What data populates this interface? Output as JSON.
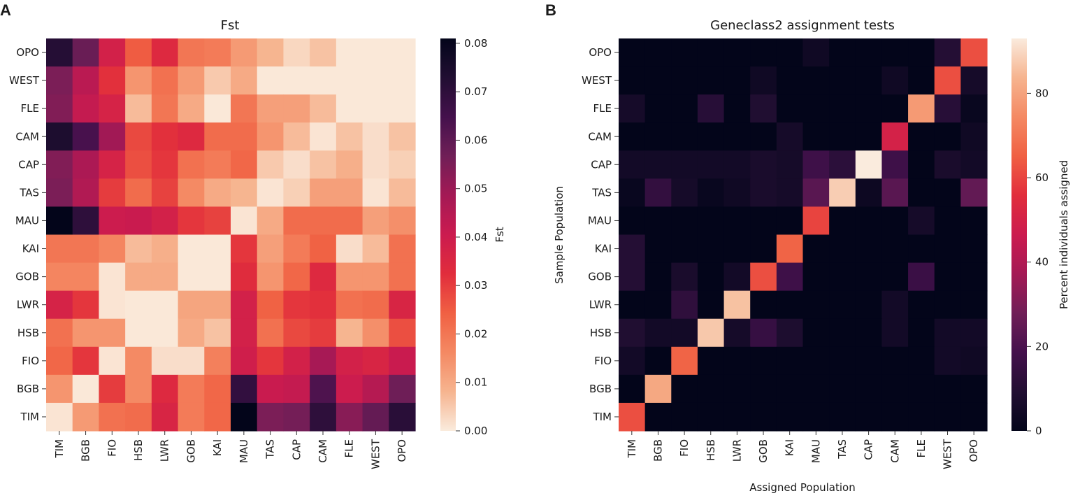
{
  "figure": {
    "panel_labels": [
      "A",
      "B"
    ]
  },
  "chart_data": [
    {
      "type": "heatmap",
      "panel": "A",
      "title": "Fst",
      "xlabel": "",
      "ylabel": "",
      "x_categories": [
        "TIM",
        "BGB",
        "FIO",
        "HSB",
        "LWR",
        "GOB",
        "KAI",
        "MAU",
        "TAS",
        "CAP",
        "CAM",
        "FLE",
        "WEST",
        "OPO"
      ],
      "y_categories": [
        "OPO",
        "WEST",
        "FLE",
        "CAM",
        "CAP",
        "TAS",
        "MAU",
        "KAI",
        "GOB",
        "LWR",
        "HSB",
        "FIO",
        "BGB",
        "TIM"
      ],
      "values": [
        [
          0.072,
          0.058,
          0.038,
          0.025,
          0.034,
          0.02,
          0.019,
          0.013,
          0.008,
          0.003,
          0.006,
          0.0005,
          0.0005,
          0.0005
        ],
        [
          0.055,
          0.044,
          0.032,
          0.014,
          0.021,
          0.013,
          0.005,
          0.01,
          0.0005,
          0.0005,
          0.0005,
          0.0005,
          0.0005,
          0.0005
        ],
        [
          0.054,
          0.042,
          0.037,
          0.007,
          0.02,
          0.01,
          0.0005,
          0.02,
          0.012,
          0.012,
          0.007,
          0.0005,
          0.0005,
          0.0005
        ],
        [
          0.074,
          0.064,
          0.049,
          0.028,
          0.032,
          0.034,
          0.022,
          0.022,
          0.014,
          0.007,
          0.001,
          0.006,
          0.002,
          0.006
        ],
        [
          0.054,
          0.047,
          0.037,
          0.027,
          0.031,
          0.021,
          0.019,
          0.023,
          0.005,
          0.002,
          0.006,
          0.009,
          0.002,
          0.004
        ],
        [
          0.055,
          0.046,
          0.03,
          0.022,
          0.029,
          0.016,
          0.01,
          0.008,
          0.001,
          0.004,
          0.012,
          0.012,
          0.001,
          0.007
        ],
        [
          0.081,
          0.07,
          0.04,
          0.041,
          0.038,
          0.031,
          0.029,
          0.001,
          0.01,
          0.022,
          0.022,
          0.022,
          0.012,
          0.015
        ],
        [
          0.02,
          0.02,
          0.017,
          0.007,
          0.009,
          0.0005,
          0.0005,
          0.031,
          0.012,
          0.019,
          0.024,
          0.002,
          0.007,
          0.021
        ],
        [
          0.017,
          0.017,
          0.001,
          0.01,
          0.01,
          0.0005,
          0.0005,
          0.033,
          0.014,
          0.023,
          0.034,
          0.014,
          0.014,
          0.021
        ],
        [
          0.037,
          0.031,
          0.001,
          0.0005,
          0.0005,
          0.011,
          0.011,
          0.038,
          0.024,
          0.031,
          0.032,
          0.021,
          0.022,
          0.036
        ],
        [
          0.021,
          0.014,
          0.014,
          0.0005,
          0.0005,
          0.01,
          0.006,
          0.038,
          0.021,
          0.028,
          0.03,
          0.008,
          0.015,
          0.027
        ],
        [
          0.023,
          0.031,
          0.001,
          0.016,
          0.002,
          0.002,
          0.018,
          0.039,
          0.031,
          0.038,
          0.048,
          0.038,
          0.036,
          0.041
        ],
        [
          0.014,
          0.0005,
          0.03,
          0.016,
          0.034,
          0.019,
          0.023,
          0.069,
          0.041,
          0.042,
          0.063,
          0.04,
          0.045,
          0.057
        ],
        [
          0.001,
          0.013,
          0.021,
          0.022,
          0.036,
          0.019,
          0.023,
          0.081,
          0.055,
          0.056,
          0.07,
          0.053,
          0.059,
          0.071
        ]
      ],
      "colorbar": {
        "label": "Fst",
        "min": 0.0,
        "max": 0.081,
        "ticks": [
          0.0,
          0.01,
          0.02,
          0.03,
          0.04,
          0.05,
          0.06,
          0.07,
          0.08
        ],
        "tick_labels": [
          "0.00",
          "0.01",
          "0.02",
          "0.03",
          "0.04",
          "0.05",
          "0.06",
          "0.07",
          "0.08"
        ]
      }
    },
    {
      "type": "heatmap",
      "panel": "B",
      "title": "Geneclass2 assignment tests",
      "xlabel": "Assigned Population",
      "ylabel": "Sample Population",
      "x_categories": [
        "TIM",
        "BGB",
        "FIO",
        "HSB",
        "LWR",
        "GOB",
        "KAI",
        "MAU",
        "TAS",
        "CAP",
        "CAM",
        "FLE",
        "WEST",
        "OPO"
      ],
      "y_categories": [
        "OPO",
        "WEST",
        "FLE",
        "CAM",
        "CAP",
        "TAS",
        "MAU",
        "KAI",
        "GOB",
        "LWR",
        "HSB",
        "FIO",
        "BGB",
        "TIM"
      ],
      "values": [
        [
          0,
          0,
          0,
          0,
          0,
          0,
          0,
          4,
          0,
          0,
          0,
          0,
          10,
          62
        ],
        [
          0,
          0,
          0,
          0,
          0,
          4,
          0,
          0,
          0,
          0,
          4,
          0,
          62,
          6
        ],
        [
          6,
          0,
          0,
          11,
          0,
          9,
          0,
          0,
          0,
          0,
          0,
          78,
          11,
          2
        ],
        [
          0,
          0,
          0,
          0,
          0,
          0,
          6,
          0,
          0,
          0,
          50,
          0,
          0,
          4
        ],
        [
          5,
          5,
          5,
          5,
          5,
          7,
          6,
          17,
          12,
          93,
          17,
          0,
          7,
          5
        ],
        [
          2,
          14,
          6,
          2,
          4,
          7,
          6,
          23,
          88,
          3,
          23,
          0,
          0,
          25
        ],
        [
          0,
          0,
          0,
          0,
          0,
          0,
          0,
          60,
          0,
          0,
          0,
          6,
          0,
          0
        ],
        [
          10,
          0,
          0,
          0,
          0,
          0,
          66,
          0,
          0,
          0,
          0,
          0,
          0,
          0
        ],
        [
          10,
          0,
          7,
          0,
          5,
          62,
          17,
          0,
          0,
          0,
          0,
          16,
          0,
          0
        ],
        [
          0,
          0,
          13,
          0,
          86,
          0,
          0,
          0,
          0,
          0,
          5,
          0,
          0,
          0
        ],
        [
          9,
          5,
          5,
          87,
          6,
          15,
          8,
          0,
          0,
          0,
          5,
          0,
          5,
          5
        ],
        [
          5,
          0,
          66,
          0,
          0,
          0,
          0,
          0,
          0,
          0,
          0,
          0,
          5,
          4
        ],
        [
          0,
          81,
          0,
          0,
          0,
          0,
          0,
          0,
          0,
          0,
          0,
          0,
          0,
          0
        ],
        [
          62,
          0,
          0,
          0,
          0,
          0,
          0,
          0,
          0,
          0,
          0,
          0,
          0,
          0
        ]
      ],
      "colorbar": {
        "label": "Percent individuals assigned",
        "min": 0,
        "max": 93,
        "ticks": [
          0,
          20,
          40,
          60,
          80
        ],
        "tick_labels": [
          "0",
          "20",
          "40",
          "60",
          "80"
        ]
      }
    }
  ]
}
